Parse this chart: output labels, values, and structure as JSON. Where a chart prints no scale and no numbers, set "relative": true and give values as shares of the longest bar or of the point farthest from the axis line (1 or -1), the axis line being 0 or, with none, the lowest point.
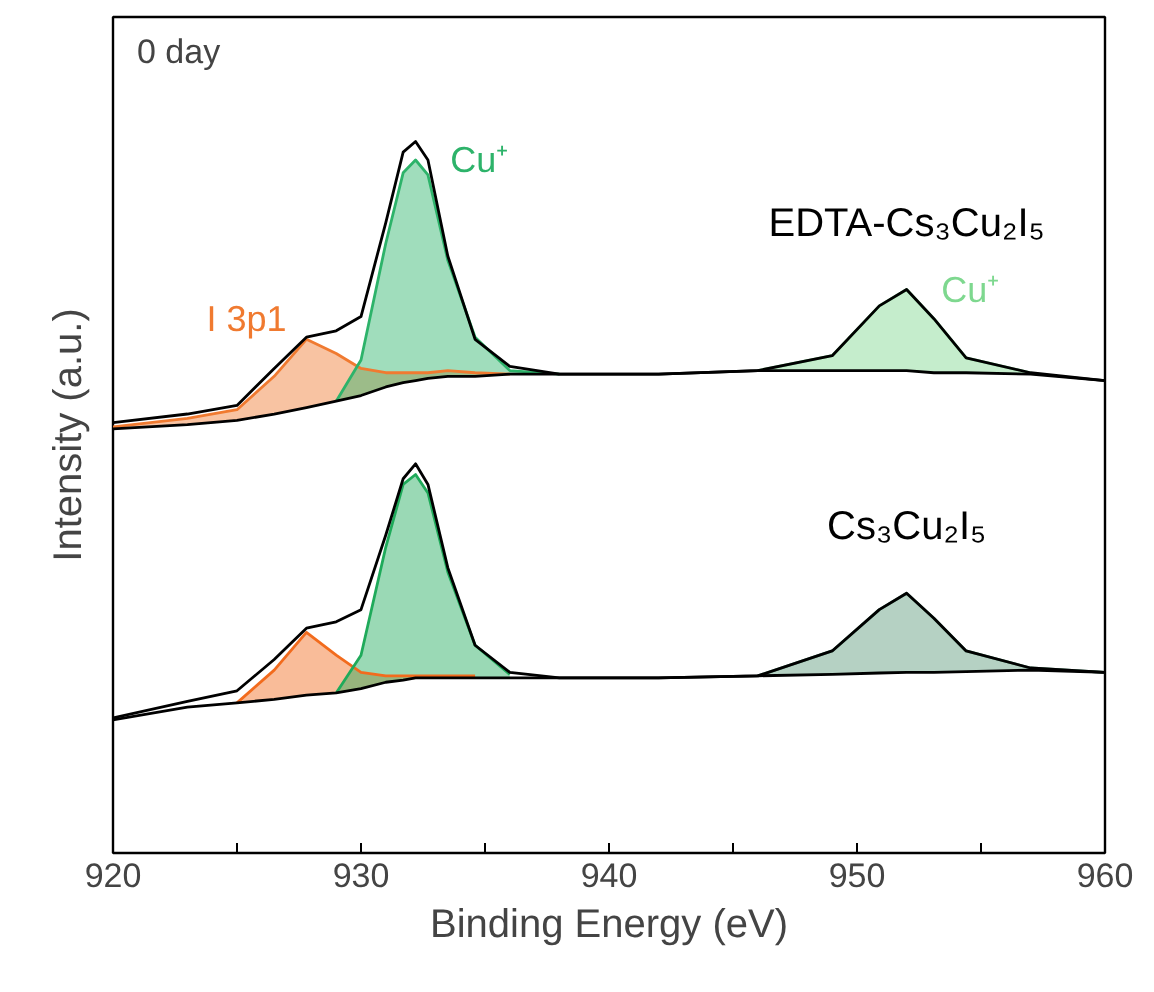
{
  "chart_data": {
    "type": "line",
    "relative": true,
    "xlabel": "Binding Energy (eV)",
    "ylabel": "Intensity (a.u.)",
    "x": [
      920,
      923,
      925,
      926.5,
      927.8,
      929,
      930,
      931,
      931.7,
      932.2,
      932.7,
      933.5,
      934.6,
      936,
      938,
      942,
      946,
      949,
      950.9,
      952,
      953.1,
      954.4,
      957,
      960
    ],
    "xlim": [
      920,
      960
    ],
    "xticks": [
      920,
      {
        "value": 925,
        "label": null
      },
      930,
      {
        "value": 935,
        "label": null
      },
      940,
      {
        "value": 945,
        "label": null
      },
      950,
      {
        "value": 955,
        "label": null
      },
      960
    ],
    "tick_labels": "x",
    "grid": false,
    "line_style": "solid",
    "annotations": [
      "0 day"
    ],
    "series": [
      {
        "color": "#f07a30",
        "name": "I 3p1",
        "values": [
          0.599,
          0.611,
          0.623,
          0.67,
          0.722,
          0.702,
          0.681,
          0.675,
          0.675,
          0.675,
          0.675,
          0.678,
          0.675,
          0.673,
          null,
          null,
          null,
          null,
          null,
          null,
          null,
          null,
          null,
          null
        ],
        "lower": [
          0.596,
          0.602,
          0.608,
          0.617,
          0.626,
          0.635,
          0.643,
          0.655,
          0.661,
          0.664,
          0.667,
          0.67,
          0.67,
          0.673,
          null,
          null,
          null,
          null,
          null,
          null,
          null,
          null,
          null,
          null
        ],
        "upper": [
          0.599,
          0.611,
          0.623,
          0.67,
          0.722,
          0.702,
          0.681,
          0.675,
          0.675,
          0.675,
          0.675,
          0.678,
          0.675,
          0.673,
          null,
          null,
          null,
          null,
          null,
          null,
          null,
          null,
          null,
          null
        ]
      },
      {
        "color": "#2db36a",
        "name": "Cu⁺",
        "values": [
          null,
          null,
          null,
          null,
          null,
          0.635,
          0.693,
          0.857,
          0.956,
          0.974,
          0.953,
          0.833,
          0.725,
          0.678,
          0.673,
          null,
          null,
          null,
          null,
          null,
          null,
          null,
          null,
          null
        ],
        "lower": [
          null,
          null,
          null,
          null,
          null,
          0.635,
          0.643,
          0.655,
          0.661,
          0.664,
          0.667,
          0.67,
          0.67,
          0.673,
          0.673,
          null,
          null,
          null,
          null,
          null,
          null,
          null,
          null,
          null
        ],
        "upper": [
          null,
          null,
          null,
          null,
          null,
          0.635,
          0.693,
          0.857,
          0.956,
          0.974,
          0.953,
          0.833,
          0.725,
          0.678,
          0.673,
          null,
          null,
          null,
          null,
          null,
          null,
          null,
          null,
          null
        ]
      },
      {
        "color": "#7ed88f",
        "name": "Cu⁺",
        "values": [
          null,
          null,
          null,
          null,
          null,
          null,
          null,
          null,
          null,
          null,
          null,
          null,
          null,
          null,
          null,
          null,
          0.678,
          0.699,
          0.769,
          0.792,
          0.751,
          0.696,
          0.675,
          null
        ],
        "lower": [
          null,
          null,
          null,
          null,
          null,
          null,
          null,
          null,
          null,
          null,
          null,
          null,
          null,
          null,
          null,
          null,
          0.678,
          0.678,
          0.678,
          0.678,
          0.675,
          0.675,
          0.673,
          null
        ],
        "upper": [
          null,
          null,
          null,
          null,
          null,
          null,
          null,
          null,
          null,
          null,
          null,
          null,
          null,
          null,
          null,
          null,
          0.678,
          0.699,
          0.769,
          0.792,
          0.751,
          0.696,
          0.675,
          null
        ]
      },
      {
        "color": "#000000",
        "values": [
          0.596,
          0.602,
          0.608,
          0.617,
          0.626,
          0.635,
          0.643,
          0.655,
          0.661,
          0.664,
          0.667,
          0.67,
          0.67,
          0.673,
          0.673,
          0.673,
          0.678,
          0.678,
          0.678,
          0.678,
          0.675,
          0.675,
          0.673,
          0.664
        ]
      },
      {
        "color": "#000000",
        "name": "EDTA-Cs₃Cu₂I₅",
        "values": [
          0.605,
          0.617,
          0.629,
          0.681,
          0.725,
          0.734,
          0.754,
          0.886,
          0.985,
          1.0,
          0.974,
          0.839,
          0.722,
          0.684,
          0.673,
          0.673,
          0.678,
          0.699,
          0.769,
          0.792,
          0.751,
          0.696,
          0.675,
          0.664
        ]
      },
      {
        "color": "#f26b1d",
        "values": [
          null,
          null,
          0.211,
          0.257,
          0.31,
          0.278,
          0.254,
          0.249,
          0.249,
          0.249,
          0.249,
          0.249,
          0.249,
          null,
          null,
          null,
          null,
          null,
          null,
          null,
          null,
          null,
          null,
          null
        ],
        "lower": [
          null,
          null,
          0.211,
          0.216,
          0.222,
          0.225,
          0.231,
          0.24,
          0.243,
          0.246,
          0.246,
          0.246,
          0.246,
          null,
          null,
          null,
          null,
          null,
          null,
          null,
          null,
          null,
          null,
          null
        ],
        "upper": [
          null,
          null,
          0.211,
          0.257,
          0.31,
          0.278,
          0.254,
          0.249,
          0.249,
          0.249,
          0.249,
          0.249,
          0.249,
          null,
          null,
          null,
          null,
          null,
          null,
          null,
          null,
          null,
          null,
          null
        ]
      },
      {
        "color": "#1faa5a",
        "values": [
          null,
          null,
          null,
          null,
          null,
          0.225,
          0.278,
          0.43,
          0.518,
          0.532,
          0.506,
          0.395,
          0.292,
          0.251,
          null,
          null,
          null,
          null,
          null,
          null,
          null,
          null,
          null,
          null
        ],
        "lower": [
          null,
          null,
          null,
          null,
          null,
          0.225,
          0.231,
          0.24,
          0.243,
          0.246,
          0.246,
          0.246,
          0.246,
          0.246,
          null,
          null,
          null,
          null,
          null,
          null,
          null,
          null,
          null,
          null
        ],
        "upper": [
          null,
          null,
          null,
          null,
          null,
          0.225,
          0.278,
          0.43,
          0.518,
          0.532,
          0.506,
          0.395,
          0.292,
          0.251,
          null,
          null,
          null,
          null,
          null,
          null,
          null,
          null,
          null,
          null
        ]
      },
      {
        "color": "#5a9a7a",
        "values": [
          null,
          null,
          null,
          null,
          null,
          null,
          null,
          null,
          null,
          null,
          null,
          null,
          null,
          null,
          null,
          null,
          0.249,
          0.284,
          0.342,
          0.365,
          0.33,
          0.284,
          0.26,
          0.254
        ],
        "lower": [
          null,
          null,
          null,
          null,
          null,
          null,
          null,
          null,
          null,
          null,
          null,
          null,
          null,
          null,
          null,
          null,
          0.249,
          0.251,
          0.253,
          0.254,
          0.254,
          0.255,
          0.257,
          0.254
        ],
        "upper": [
          null,
          null,
          null,
          null,
          null,
          null,
          null,
          null,
          null,
          null,
          null,
          null,
          null,
          null,
          null,
          null,
          0.249,
          0.284,
          0.342,
          0.365,
          0.33,
          0.284,
          0.26,
          0.254
        ]
      },
      {
        "color": "#000000",
        "values": [
          0.187,
          0.205,
          0.211,
          0.216,
          0.222,
          0.225,
          0.231,
          0.24,
          0.243,
          0.246,
          0.246,
          0.246,
          0.246,
          0.246,
          0.246,
          0.246,
          0.249,
          0.251,
          0.253,
          0.254,
          0.254,
          0.255,
          0.257,
          0.254
        ]
      },
      {
        "color": "#000000",
        "name": "Cs₃Cu₂I₅",
        "values": [
          0.19,
          0.213,
          0.228,
          0.272,
          0.316,
          0.325,
          0.342,
          0.447,
          0.526,
          0.547,
          0.518,
          0.401,
          0.292,
          0.254,
          0.246,
          0.246,
          0.249,
          0.284,
          0.342,
          0.365,
          0.33,
          0.284,
          0.26,
          0.254
        ]
      }
    ]
  }
}
